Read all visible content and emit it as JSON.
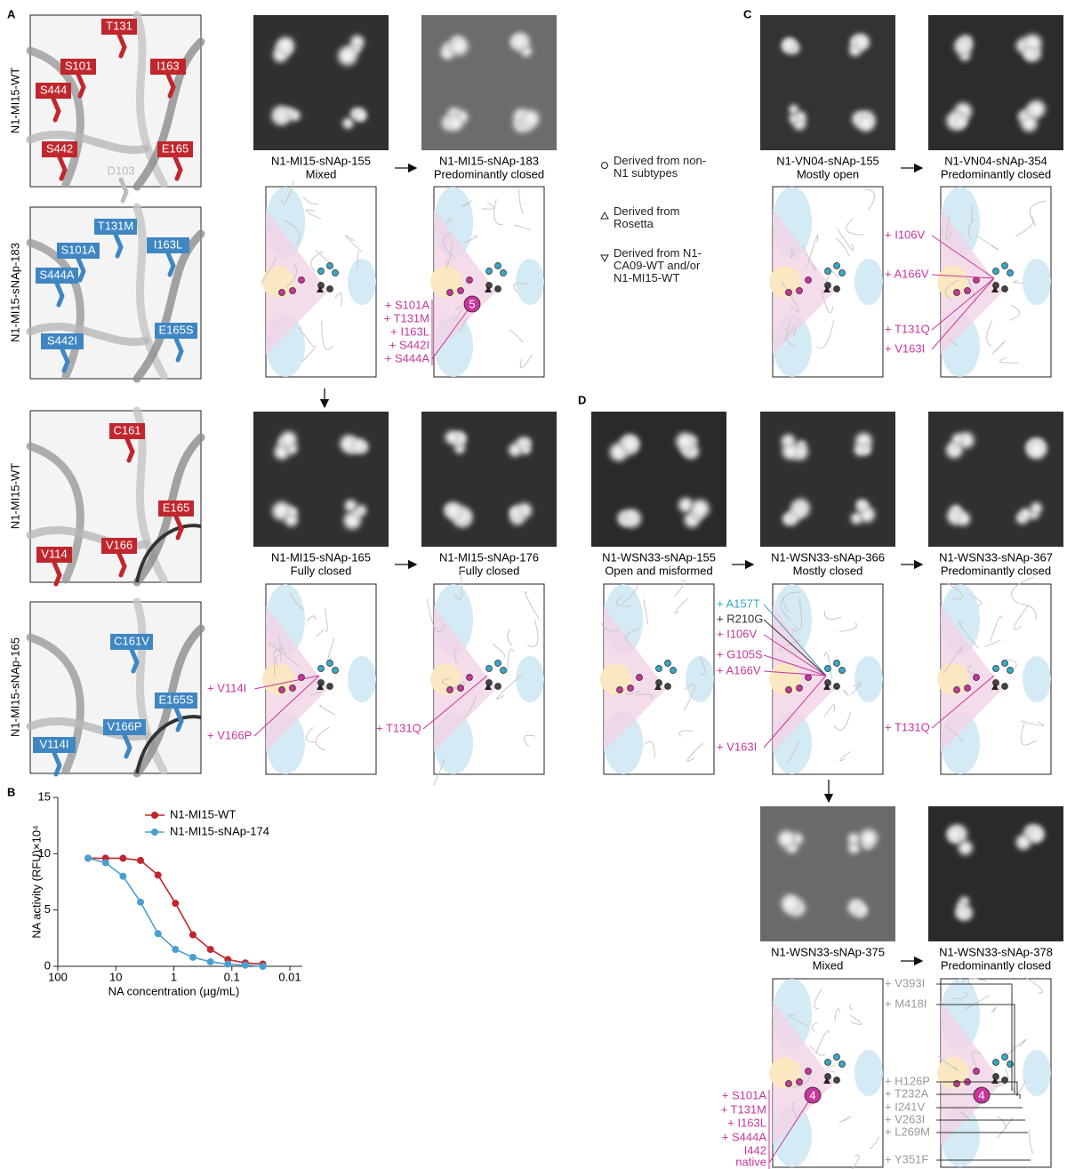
{
  "panel_labels": [
    "A",
    "B",
    "C",
    "D"
  ],
  "legend": [
    "Derived from non-N1 subtypes",
    "Derived from Rosetta",
    "Derived from N1-CA09-WT and/or N1-MI15-WT"
  ],
  "structures": [
    {
      "row_label": "N1-MI15-WT",
      "residues": [
        {
          "label": "T131",
          "color": "#c0272d"
        },
        {
          "label": "S101",
          "color": "#c0272d"
        },
        {
          "label": "I163",
          "color": "#c0272d"
        },
        {
          "label": "S444",
          "color": "#c0272d"
        },
        {
          "label": "S442",
          "color": "#c0272d"
        },
        {
          "label": "E165",
          "color": "#c0272d"
        },
        {
          "label": "D103",
          "color": "#bdbdbd"
        }
      ]
    },
    {
      "row_label": "N1-MI15-sNAp-183",
      "residues": [
        {
          "label": "T131M",
          "color": "#3f86c2"
        },
        {
          "label": "S101A",
          "color": "#3f86c2"
        },
        {
          "label": "I163L",
          "color": "#3f86c2"
        },
        {
          "label": "S444A",
          "color": "#3f86c2"
        },
        {
          "label": "S442I",
          "color": "#3f86c2"
        },
        {
          "label": "E165S",
          "color": "#3f86c2"
        }
      ]
    },
    {
      "row_label": "N1-MI15-WT",
      "residues": [
        {
          "label": "C161",
          "color": "#c0272d"
        },
        {
          "label": "E165",
          "color": "#c0272d"
        },
        {
          "label": "V114",
          "color": "#c0272d"
        },
        {
          "label": "V166",
          "color": "#c0272d"
        }
      ]
    },
    {
      "row_label": "N1-MI15-sNAp-165",
      "residues": [
        {
          "label": "C161V",
          "color": "#3f86c2"
        },
        {
          "label": "E165S",
          "color": "#3f86c2"
        },
        {
          "label": "V114I",
          "color": "#3f86c2"
        },
        {
          "label": "V166P",
          "color": "#3f86c2"
        }
      ]
    }
  ],
  "designs": [
    {
      "name": "N1-MI15-sNAp-155",
      "state": "Mixed",
      "mutations": []
    },
    {
      "name": "N1-MI15-sNAp-183",
      "state": "Predominantly closed",
      "badge": "5",
      "mutations": [
        {
          "label": "+ S101A",
          "color": "#c8369b"
        },
        {
          "label": "+ T131M",
          "color": "#c8369b"
        },
        {
          "label": "+ I163L",
          "color": "#c8369b"
        },
        {
          "label": "+ S442I",
          "color": "#c8369b"
        },
        {
          "label": "+ S444A",
          "color": "#c8369b"
        }
      ]
    },
    {
      "name": "N1-MI15-sNAp-165",
      "state": "Fully closed",
      "mutations": [
        {
          "label": "+ V114I",
          "color": "#c8369b"
        },
        {
          "label": "+ V166P",
          "color": "#c8369b"
        }
      ]
    },
    {
      "name": "N1-MI15-sNAp-176",
      "state": "Fully closed",
      "mutations": [
        {
          "label": "+ T131Q",
          "color": "#c8369b"
        }
      ]
    },
    {
      "name": "N1-VN04-sNAp-155",
      "state": "Mostly open",
      "mutations": []
    },
    {
      "name": "N1-VN04-sNAp-354",
      "state": "Predominantly closed",
      "mutations": [
        {
          "label": "+ I106V",
          "color": "#c8369b"
        },
        {
          "label": "+ A166V",
          "color": "#c8369b"
        },
        {
          "label": "+ T131Q",
          "color": "#c8369b"
        },
        {
          "label": "+ V163I",
          "color": "#c8369b"
        }
      ]
    },
    {
      "name": "N1-WSN33-sNAp-155",
      "state": "Open and misformed",
      "mutations": []
    },
    {
      "name": "N1-WSN33-sNAp-366",
      "state": "Mostly closed",
      "mutations": [
        {
          "label": "+ A157T",
          "color": "#3aa7c4"
        },
        {
          "label": "+ R210G",
          "color": "#333333"
        },
        {
          "label": "+ I106V",
          "color": "#c8369b"
        },
        {
          "label": "+ G105S",
          "color": "#c8369b"
        },
        {
          "label": "+ A166V",
          "color": "#c8369b"
        },
        {
          "label": "+ V163I",
          "color": "#c8369b"
        }
      ]
    },
    {
      "name": "N1-WSN33-sNAp-367",
      "state": "Predominantly closed",
      "mutations": [
        {
          "label": "+ T131Q",
          "color": "#c8369b"
        }
      ]
    },
    {
      "name": "N1-WSN33-sNAp-375",
      "state": "Mixed",
      "badge": "4",
      "mutations": [
        {
          "label": "+ S101A",
          "color": "#c8369b"
        },
        {
          "label": "+ T131M",
          "color": "#c8369b"
        },
        {
          "label": "+ I163L",
          "color": "#c8369b"
        },
        {
          "label": "+ S444A",
          "color": "#c8369b"
        },
        {
          "label": "I442",
          "color": "#c8369b"
        },
        {
          "label": "native",
          "color": "#c8369b"
        }
      ]
    },
    {
      "name": "N1-WSN33-sNAp-378",
      "state": "Predominantly closed",
      "badge": "4",
      "mutations": [
        {
          "label": "+ V393I",
          "color": "#9a9a9a"
        },
        {
          "label": "+ M418I",
          "color": "#9a9a9a"
        },
        {
          "label": "+ H126P",
          "color": "#9a9a9a"
        },
        {
          "label": "+ T232A",
          "color": "#9a9a9a"
        },
        {
          "label": "+ I241V",
          "color": "#9a9a9a"
        },
        {
          "label": "+ V263I",
          "color": "#9a9a9a"
        },
        {
          "label": "+ L269M",
          "color": "#9a9a9a"
        },
        {
          "label": "+ Y351F",
          "color": "#9a9a9a"
        }
      ]
    }
  ],
  "chart_data": {
    "type": "line",
    "x_label": "NA concentration (µg/mL)",
    "y_label": "NA activity (RFU)×10⁴",
    "x": [
      30,
      15,
      7.5,
      3.75,
      1.875,
      0.9375,
      0.469,
      0.234,
      0.117,
      0.0586,
      0.0293
    ],
    "series": [
      {
        "name": "N1-MI15-WT",
        "color": "#c0272d",
        "values": [
          9.6,
          9.6,
          9.6,
          9.4,
          8.1,
          5.6,
          2.8,
          1.5,
          0.6,
          0.3,
          0.2
        ]
      },
      {
        "name": "N1-MI15-sNAp-174",
        "color": "#4a9fd1",
        "values": [
          9.6,
          9.2,
          8.0,
          5.7,
          2.9,
          1.5,
          0.8,
          0.4,
          0.2,
          0.1,
          0.0
        ]
      }
    ],
    "xlim": [
      100,
      0.01
    ],
    "xticks": [
      100,
      10,
      1,
      0.1,
      0.01
    ],
    "x_scale": "log",
    "ylim": [
      0,
      15
    ],
    "yticks": [
      0,
      5,
      10,
      15
    ],
    "legend": "upper right"
  }
}
